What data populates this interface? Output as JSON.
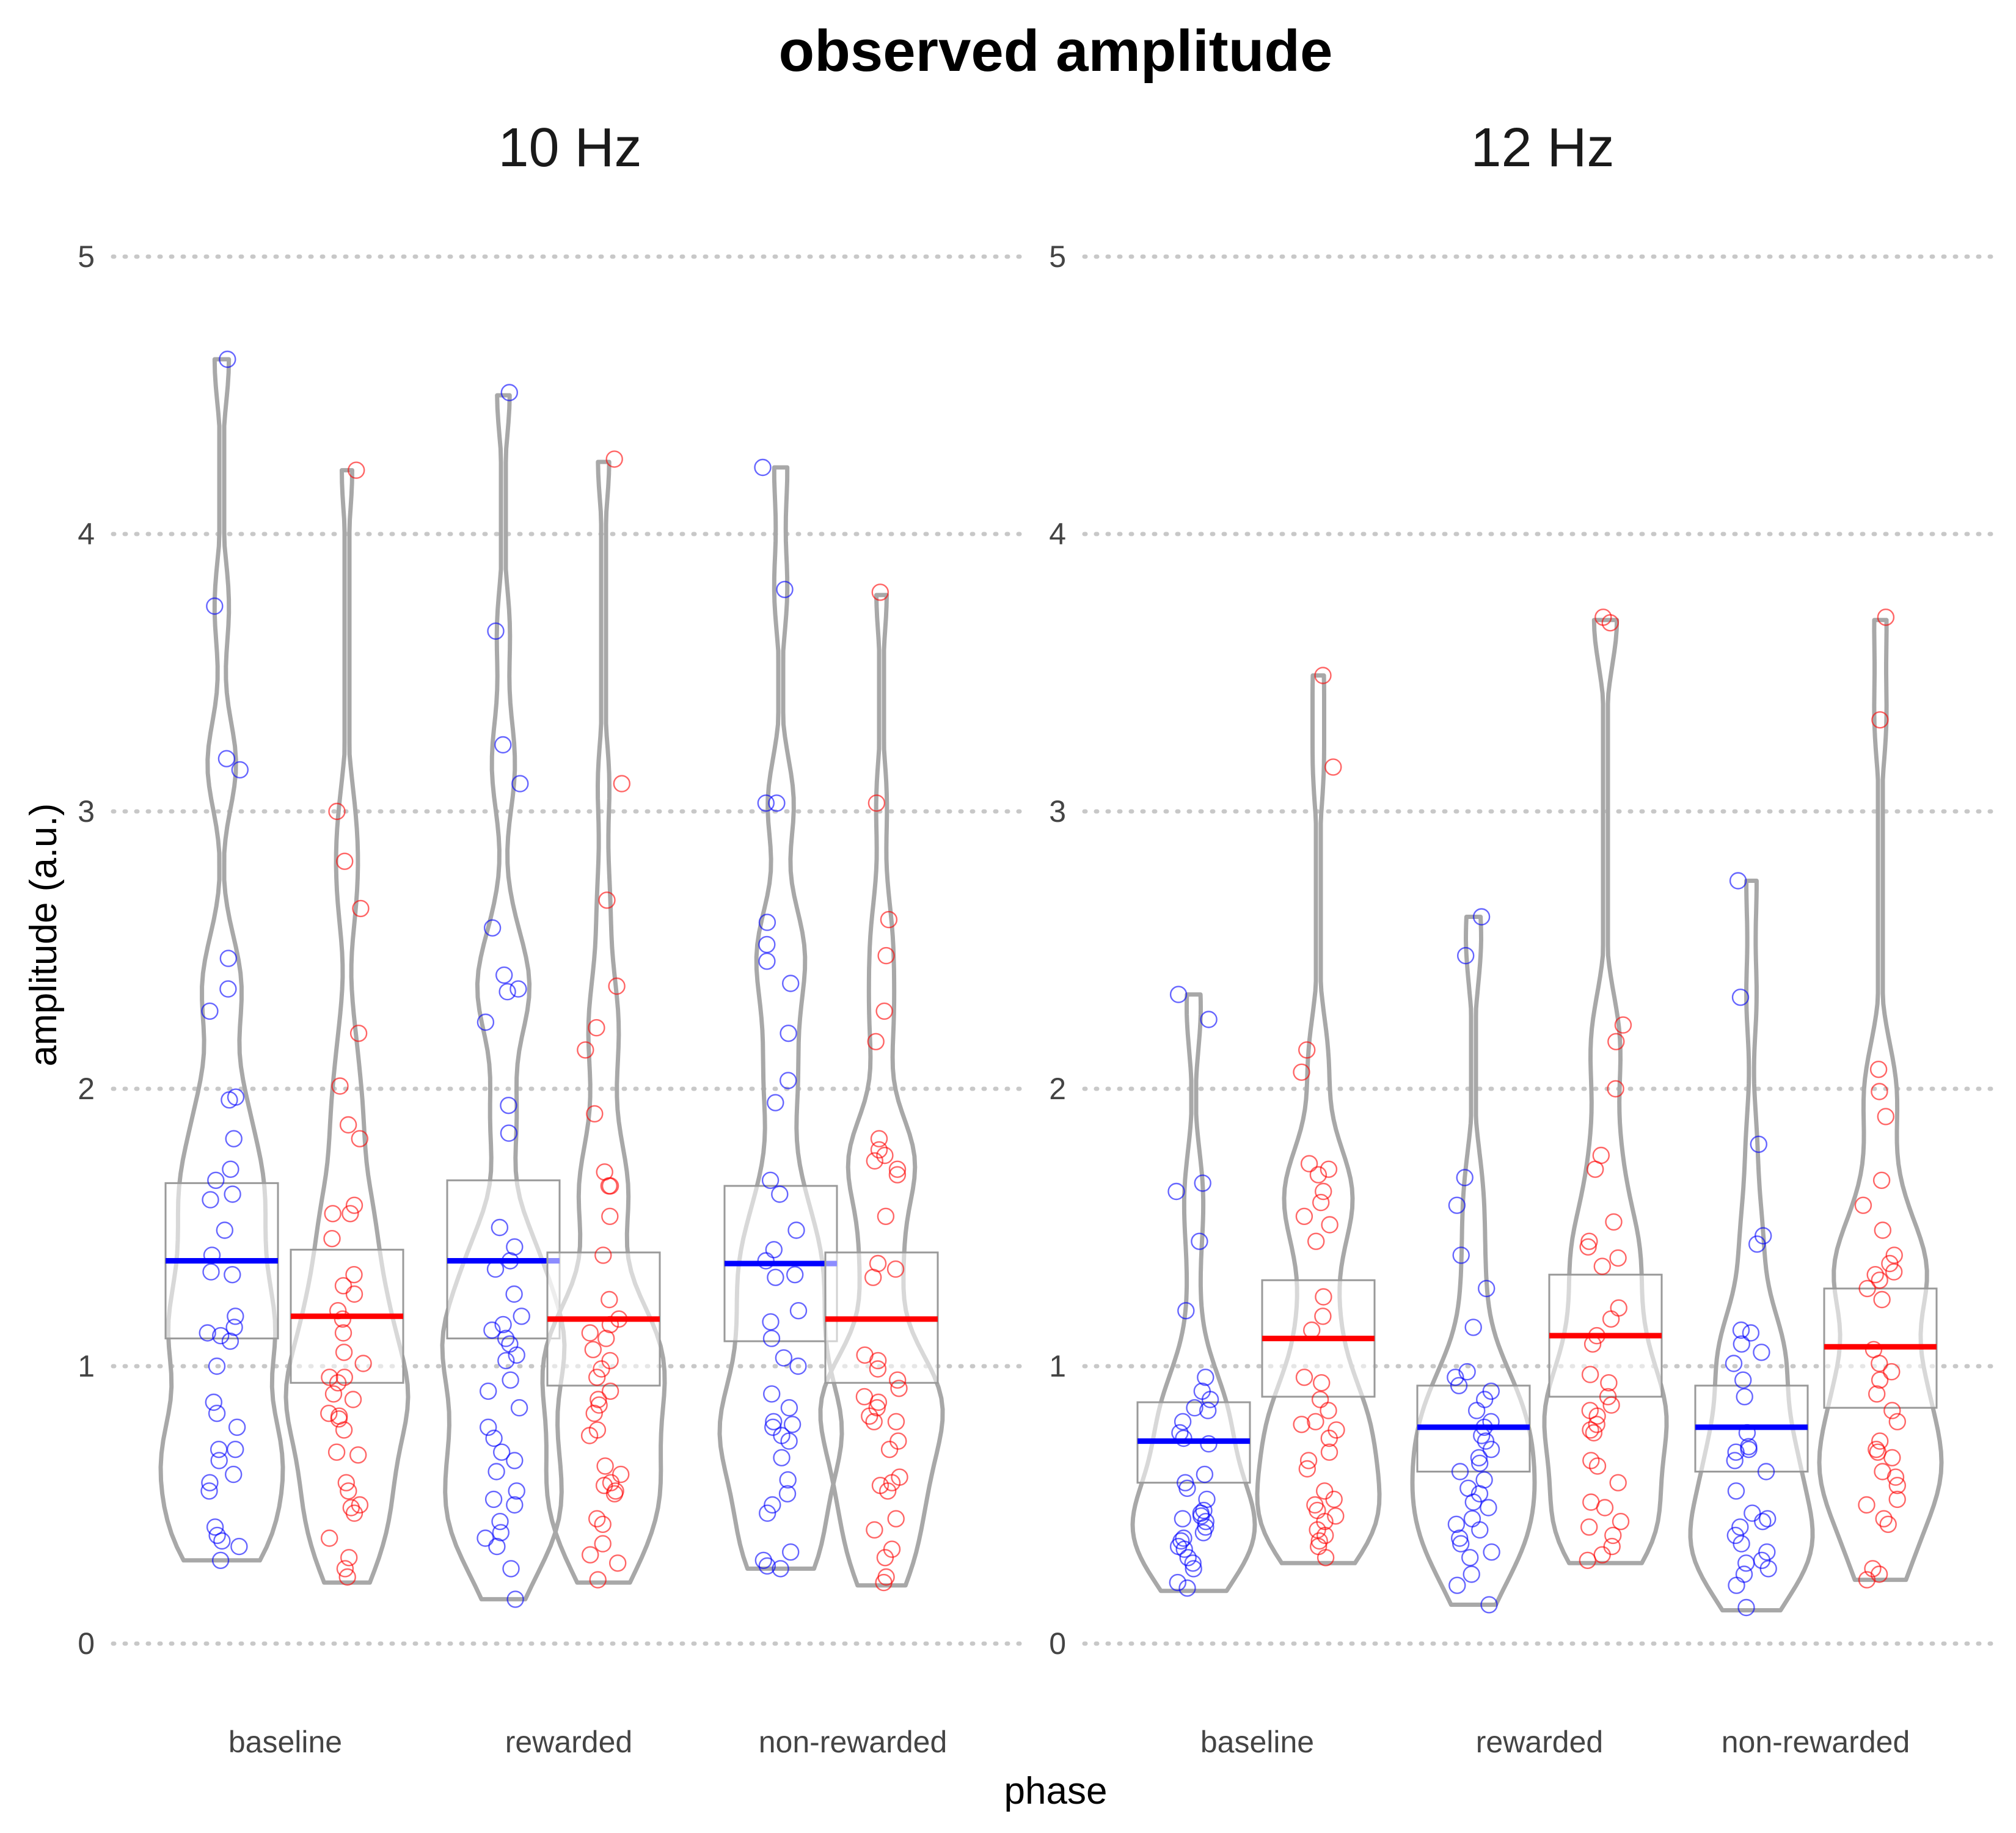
{
  "chart_data": {
    "type": "violin",
    "title": "observed amplitude",
    "xlabel": "phase",
    "ylabel": "amplitude (a.u.)",
    "ylim": [
      0,
      5
    ],
    "yticks": [
      0,
      1,
      2,
      3,
      4,
      5
    ],
    "grid": "horizontal dotted",
    "categories": [
      "baseline",
      "rewarded",
      "non-rewarded"
    ],
    "colors": {
      "blue_condition": "#0000ff",
      "red_condition": "#ff0000",
      "violin": "#a8a8a8",
      "box": "#9a9a9a"
    },
    "panels": [
      {
        "title": "10 Hz",
        "groups": [
          {
            "category": "baseline",
            "color": "blue",
            "median": 1.38,
            "q1": 1.1,
            "q3": 1.66,
            "min": 0.3,
            "max": 4.63,
            "points": [
              4.63,
              3.74,
              3.19,
              3.15,
              2.47,
              2.36,
              2.28,
              1.97,
              1.96,
              1.82,
              1.71,
              1.67,
              1.62,
              1.6,
              1.49,
              1.4,
              1.34,
              1.33,
              1.18,
              1.14,
              1.12,
              1.11,
              1.09,
              1.0,
              0.87,
              0.83,
              0.78,
              0.7,
              0.7,
              0.66,
              0.61,
              0.58,
              0.55,
              0.42,
              0.39,
              0.37,
              0.35,
              0.3
            ]
          },
          {
            "category": "baseline",
            "color": "red",
            "median": 1.18,
            "q1": 0.94,
            "q3": 1.42,
            "min": 0.22,
            "max": 4.23,
            "points": [
              4.23,
              3.0,
              2.82,
              2.65,
              2.2,
              2.01,
              1.87,
              1.82,
              1.58,
              1.55,
              1.55,
              1.46,
              1.33,
              1.29,
              1.26,
              1.2,
              1.17,
              1.12,
              1.05,
              1.01,
              0.96,
              0.96,
              0.94,
              0.9,
              0.88,
              0.83,
              0.82,
              0.81,
              0.77,
              0.69,
              0.68,
              0.58,
              0.55,
              0.5,
              0.49,
              0.47,
              0.38,
              0.31,
              0.27,
              0.24
            ]
          },
          {
            "category": "rewarded",
            "color": "blue",
            "median": 1.38,
            "q1": 1.1,
            "q3": 1.67,
            "min": 0.16,
            "max": 4.5,
            "points": [
              4.51,
              3.65,
              3.24,
              3.1,
              2.58,
              2.41,
              2.36,
              2.35,
              2.24,
              1.94,
              1.84,
              1.5,
              1.43,
              1.38,
              1.35,
              1.26,
              1.18,
              1.15,
              1.13,
              1.1,
              1.08,
              1.04,
              1.02,
              0.95,
              0.91,
              0.85,
              0.78,
              0.74,
              0.69,
              0.66,
              0.62,
              0.55,
              0.52,
              0.5,
              0.44,
              0.4,
              0.38,
              0.35,
              0.27,
              0.16
            ]
          },
          {
            "category": "rewarded",
            "color": "red",
            "median": 1.17,
            "q1": 0.93,
            "q3": 1.41,
            "min": 0.22,
            "max": 4.26,
            "points": [
              4.27,
              3.1,
              2.68,
              2.37,
              2.22,
              2.14,
              1.91,
              1.7,
              1.65,
              1.65,
              1.54,
              1.4,
              1.24,
              1.17,
              1.15,
              1.12,
              1.1,
              1.06,
              1.02,
              0.99,
              0.96,
              0.91,
              0.88,
              0.86,
              0.83,
              0.77,
              0.75,
              0.64,
              0.61,
              0.58,
              0.57,
              0.55,
              0.54,
              0.45,
              0.43,
              0.36,
              0.32,
              0.29,
              0.23
            ]
          },
          {
            "category": "non-rewarded",
            "color": "blue",
            "median": 1.37,
            "q1": 1.09,
            "q3": 1.65,
            "min": 0.27,
            "max": 4.24,
            "points": [
              4.24,
              3.8,
              3.03,
              3.03,
              2.6,
              2.52,
              2.46,
              2.38,
              2.2,
              2.03,
              1.95,
              1.67,
              1.62,
              1.49,
              1.42,
              1.38,
              1.33,
              1.32,
              1.2,
              1.16,
              1.1,
              1.03,
              1.0,
              0.9,
              0.85,
              0.8,
              0.79,
              0.78,
              0.75,
              0.73,
              0.67,
              0.59,
              0.54,
              0.5,
              0.47,
              0.33,
              0.3,
              0.28,
              0.27
            ]
          },
          {
            "category": "non-rewarded",
            "color": "red",
            "median": 1.17,
            "q1": 0.94,
            "q3": 1.41,
            "min": 0.21,
            "max": 3.78,
            "points": [
              3.79,
              3.03,
              2.61,
              2.48,
              2.28,
              2.17,
              1.82,
              1.78,
              1.76,
              1.74,
              1.71,
              1.69,
              1.54,
              1.37,
              1.35,
              1.32,
              1.04,
              1.02,
              0.99,
              0.95,
              0.92,
              0.89,
              0.87,
              0.85,
              0.82,
              0.8,
              0.8,
              0.73,
              0.7,
              0.6,
              0.58,
              0.57,
              0.55,
              0.45,
              0.41,
              0.34,
              0.31,
              0.24,
              0.22
            ]
          }
        ]
      },
      {
        "title": "12 Hz",
        "groups": [
          {
            "category": "baseline",
            "color": "blue",
            "median": 0.73,
            "q1": 0.58,
            "q3": 0.87,
            "min": 0.19,
            "max": 2.34,
            "points": [
              2.34,
              2.25,
              1.66,
              1.63,
              1.45,
              1.2,
              0.96,
              0.91,
              0.88,
              0.85,
              0.84,
              0.8,
              0.76,
              0.74,
              0.72,
              0.61,
              0.58,
              0.56,
              0.52,
              0.48,
              0.47,
              0.46,
              0.45,
              0.44,
              0.42,
              0.4,
              0.38,
              0.37,
              0.35,
              0.34,
              0.31,
              0.29,
              0.27,
              0.22,
              0.2
            ]
          },
          {
            "category": "baseline",
            "color": "red",
            "median": 1.1,
            "q1": 0.89,
            "q3": 1.31,
            "min": 0.29,
            "max": 3.49,
            "points": [
              3.49,
              3.16,
              2.14,
              2.06,
              1.73,
              1.71,
              1.69,
              1.63,
              1.59,
              1.54,
              1.51,
              1.45,
              1.25,
              1.18,
              1.13,
              0.96,
              0.94,
              0.88,
              0.84,
              0.8,
              0.79,
              0.77,
              0.74,
              0.69,
              0.66,
              0.63,
              0.55,
              0.52,
              0.5,
              0.48,
              0.46,
              0.44,
              0.41,
              0.39,
              0.37,
              0.35,
              0.31
            ]
          },
          {
            "category": "rewarded",
            "color": "blue",
            "median": 0.78,
            "q1": 0.62,
            "q3": 0.93,
            "min": 0.14,
            "max": 2.62,
            "points": [
              2.62,
              2.48,
              1.68,
              1.58,
              1.4,
              1.28,
              1.14,
              0.98,
              0.96,
              0.93,
              0.91,
              0.88,
              0.84,
              0.8,
              0.78,
              0.75,
              0.73,
              0.7,
              0.67,
              0.65,
              0.62,
              0.59,
              0.56,
              0.54,
              0.51,
              0.49,
              0.45,
              0.43,
              0.41,
              0.38,
              0.36,
              0.33,
              0.31,
              0.25,
              0.21,
              0.14
            ]
          },
          {
            "category": "rewarded",
            "color": "red",
            "median": 1.11,
            "q1": 0.89,
            "q3": 1.33,
            "min": 0.29,
            "max": 3.69,
            "points": [
              3.7,
              3.68,
              2.23,
              2.17,
              2.0,
              1.76,
              1.71,
              1.52,
              1.45,
              1.43,
              1.39,
              1.36,
              1.21,
              1.17,
              1.11,
              1.08,
              0.97,
              0.94,
              0.89,
              0.86,
              0.84,
              0.82,
              0.79,
              0.77,
              0.76,
              0.66,
              0.64,
              0.58,
              0.51,
              0.49,
              0.44,
              0.42,
              0.39,
              0.35,
              0.32,
              0.3
            ]
          },
          {
            "category": "non-rewarded",
            "color": "blue",
            "median": 0.78,
            "q1": 0.62,
            "q3": 0.93,
            "min": 0.12,
            "max": 2.75,
            "points": [
              2.75,
              2.33,
              1.8,
              1.47,
              1.44,
              1.13,
              1.12,
              1.08,
              1.05,
              1.01,
              0.95,
              0.89,
              0.76,
              0.71,
              0.7,
              0.69,
              0.66,
              0.62,
              0.55,
              0.47,
              0.45,
              0.44,
              0.42,
              0.39,
              0.36,
              0.33,
              0.3,
              0.29,
              0.27,
              0.25,
              0.21,
              0.13
            ]
          },
          {
            "category": "non-rewarded",
            "color": "red",
            "median": 1.07,
            "q1": 0.85,
            "q3": 1.28,
            "min": 0.23,
            "max": 3.69,
            "points": [
              3.7,
              3.33,
              2.07,
              1.99,
              1.9,
              1.67,
              1.58,
              1.49,
              1.4,
              1.37,
              1.34,
              1.33,
              1.31,
              1.28,
              1.24,
              1.06,
              1.01,
              0.98,
              0.95,
              0.9,
              0.84,
              0.8,
              0.73,
              0.7,
              0.69,
              0.67,
              0.62,
              0.6,
              0.57,
              0.52,
              0.5,
              0.45,
              0.43,
              0.27,
              0.25,
              0.23
            ]
          }
        ]
      }
    ]
  }
}
